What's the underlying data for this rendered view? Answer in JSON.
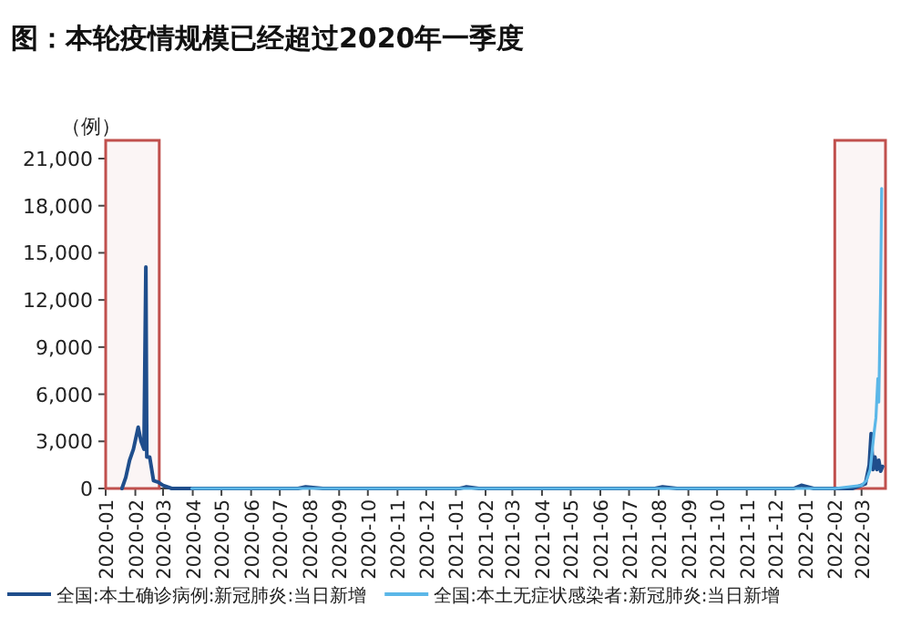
{
  "chart_data": {
    "type": "line",
    "title": "图：本轮疫情规模已经超过2020年一季度",
    "ylabel": "（例）",
    "xlim": [
      "2020-01-01",
      "2022-03-26"
    ],
    "xticks": [
      {
        "value": "2020-01-01",
        "label": "2020-01"
      },
      {
        "value": "2020-02-01",
        "label": "2020-02"
      },
      {
        "value": "2020-03-01",
        "label": "2020-03"
      },
      {
        "value": "2020-04-01",
        "label": "2020-04"
      },
      {
        "value": "2020-05-01",
        "label": "2020-05"
      },
      {
        "value": "2020-06-01",
        "label": "2020-06"
      },
      {
        "value": "2020-07-01",
        "label": "2020-07"
      },
      {
        "value": "2020-08-01",
        "label": "2020-08"
      },
      {
        "value": "2020-09-01",
        "label": "2020-09"
      },
      {
        "value": "2020-10-01",
        "label": "2020-10"
      },
      {
        "value": "2020-11-01",
        "label": "2020-11"
      },
      {
        "value": "2020-12-01",
        "label": "2020-12"
      },
      {
        "value": "2021-01-01",
        "label": "2021-01"
      },
      {
        "value": "2021-02-01",
        "label": "2021-02"
      },
      {
        "value": "2021-03-01",
        "label": "2021-03"
      },
      {
        "value": "2021-04-01",
        "label": "2021-04"
      },
      {
        "value": "2021-05-01",
        "label": "2021-05"
      },
      {
        "value": "2021-06-01",
        "label": "2021-06"
      },
      {
        "value": "2021-07-01",
        "label": "2021-07"
      },
      {
        "value": "2021-08-01",
        "label": "2021-08"
      },
      {
        "value": "2021-09-01",
        "label": "2021-09"
      },
      {
        "value": "2021-10-01",
        "label": "2021-10"
      },
      {
        "value": "2021-11-01",
        "label": "2021-11"
      },
      {
        "value": "2021-12-01",
        "label": "2021-12"
      },
      {
        "value": "2022-01-01",
        "label": "2022-01"
      },
      {
        "value": "2022-02-01",
        "label": "2022-02"
      },
      {
        "value": "2022-03-01",
        "label": "2022-03"
      }
    ],
    "ylim": [
      0,
      21000
    ],
    "yticks": [
      0,
      {
        "value": 3000,
        "label": "3,000"
      },
      {
        "value": 6000,
        "label": "6,000"
      },
      {
        "value": 9000,
        "label": "9,000"
      },
      {
        "value": 12000,
        "label": "12,000"
      },
      {
        "value": 15000,
        "label": "15,000"
      },
      {
        "value": 18000,
        "label": "18,000"
      },
      {
        "value": 21000,
        "label": "21,000"
      }
    ],
    "grid": false,
    "legend": "bottom",
    "bands": [
      {
        "axis": "x",
        "from": "2020-01-01",
        "to": "2020-02-26",
        "color": "#c0504d"
      },
      {
        "axis": "x",
        "from": "2022-02-01",
        "to": "2022-03-26",
        "color": "#c0504d"
      }
    ],
    "series": [
      {
        "name": "全国:本土确诊病例:新冠肺炎:当日新增",
        "color": "#1f4e8c",
        "x": [
          "2020-01-18",
          "2020-01-22",
          "2020-01-26",
          "2020-01-30",
          "2020-02-04",
          "2020-02-07",
          "2020-02-10",
          "2020-02-12",
          "2020-02-13",
          "2020-02-16",
          "2020-02-20",
          "2020-02-25",
          "2020-03-01",
          "2020-03-10",
          "2020-04-01",
          "2020-06-01",
          "2020-07-20",
          "2020-07-28",
          "2020-08-15",
          "2021-01-05",
          "2021-01-12",
          "2021-01-25",
          "2021-07-28",
          "2021-08-05",
          "2021-08-20",
          "2021-12-20",
          "2021-12-28",
          "2022-01-10",
          "2022-02-20",
          "2022-03-05",
          "2022-03-09",
          "2022-03-11",
          "2022-03-13",
          "2022-03-15",
          "2022-03-17",
          "2022-03-19",
          "2022-03-21",
          "2022-03-23"
        ],
        "values": [
          0,
          700,
          1800,
          2500,
          3900,
          3000,
          2500,
          14100,
          2000,
          2000,
          500,
          400,
          200,
          0,
          0,
          0,
          0,
          100,
          0,
          0,
          100,
          0,
          0,
          100,
          0,
          0,
          200,
          0,
          0,
          300,
          1500,
          3500,
          1200,
          2000,
          1200,
          1800,
          1100,
          1400
        ]
      },
      {
        "name": "全国:本土无症状感染者:新冠肺炎:当日新增",
        "color": "#5bb7e8",
        "x": [
          "2020-03-31",
          "2020-05-01",
          "2020-07-01",
          "2020-10-01",
          "2021-01-01",
          "2021-04-01",
          "2021-08-01",
          "2021-12-01",
          "2022-02-01",
          "2022-03-01",
          "2022-03-06",
          "2022-03-10",
          "2022-03-14",
          "2022-03-16",
          "2022-03-18",
          "2022-03-19",
          "2022-03-21",
          "2022-03-22"
        ],
        "values": [
          0,
          0,
          0,
          0,
          0,
          0,
          0,
          0,
          0,
          200,
          500,
          1200,
          3500,
          4500,
          7000,
          5500,
          13000,
          19100
        ]
      }
    ]
  }
}
